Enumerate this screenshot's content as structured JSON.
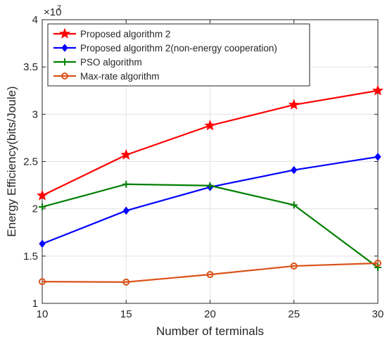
{
  "chart_data": {
    "type": "line",
    "title": "",
    "xlabel": "Number of terminals",
    "ylabel": "Energy Efficiency(bits/Joule)",
    "y_multiplier_label": "×10",
    "y_multiplier_exp": "7",
    "x": [
      10,
      15,
      20,
      25,
      30
    ],
    "xlim": [
      10,
      30
    ],
    "ylim": [
      1,
      4
    ],
    "x_ticks": [
      10,
      15,
      20,
      25,
      30
    ],
    "y_ticks": [
      1,
      1.5,
      2,
      2.5,
      3,
      3.5,
      4
    ],
    "y_tick_labels": [
      "1",
      "1.5",
      "2",
      "2.5",
      "3",
      "3.5",
      "4"
    ],
    "grid": true,
    "legend_position": "top-left",
    "series": [
      {
        "name": "Proposed algorithm 2",
        "color": "#ff0000",
        "marker": "star",
        "values": [
          2.14,
          2.57,
          2.88,
          3.1,
          3.25
        ]
      },
      {
        "name": "Proposed algorithm 2(non-energy cooperation)",
        "color": "#0000ff",
        "marker": "diamond",
        "values": [
          1.63,
          1.98,
          2.23,
          2.41,
          2.55
        ]
      },
      {
        "name": "PSO algorithm",
        "color": "#007f00",
        "marker": "plus",
        "values": [
          2.02,
          2.26,
          2.245,
          2.04,
          1.38
        ]
      },
      {
        "name": "Max-rate algorithm",
        "color": "#d95319",
        "marker": "circle",
        "values": [
          1.23,
          1.225,
          1.305,
          1.395,
          1.425
        ]
      }
    ]
  }
}
